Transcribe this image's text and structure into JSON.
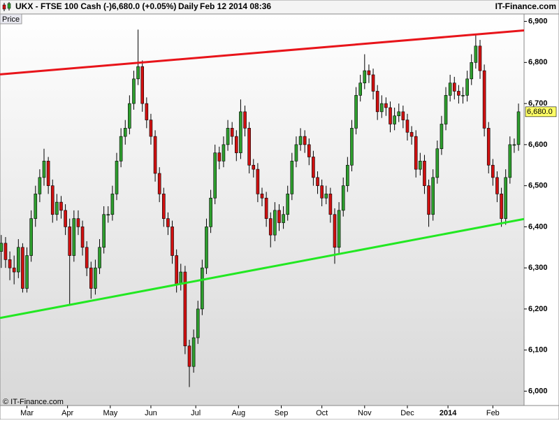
{
  "chart_data": {
    "type": "candlestick",
    "title": "UKX - FTSE 100 Cash (-)",
    "price_text": "6,680.0 (+0.05%)",
    "period": "Daily",
    "timestamp": "Feb 12 2014 08:36",
    "brand": "IT-Finance.com",
    "panel_label": "Price",
    "copyright": "© IT-Finance.com",
    "colors": {
      "up": "#2e9e2e",
      "down": "#d01010"
    },
    "xlim": [
      -0.3,
      122.3
    ],
    "xticks": [
      {
        "value": 6,
        "label": "Mar"
      },
      {
        "value": 15.5,
        "label": "Apr"
      },
      {
        "value": 25.5,
        "label": "May"
      },
      {
        "value": 35,
        "label": "Jun"
      },
      {
        "value": 45.5,
        "label": "Jul"
      },
      {
        "value": 55.5,
        "label": "Aug"
      },
      {
        "value": 65.5,
        "label": "Sep"
      },
      {
        "value": 75,
        "label": "Oct"
      },
      {
        "value": 85,
        "label": "Nov"
      },
      {
        "value": 95,
        "label": "Dec"
      },
      {
        "value": 104.5,
        "label": "2014"
      },
      {
        "value": 115,
        "label": "Feb"
      }
    ],
    "ylim": [
      5965,
      6918
    ],
    "yticks": [
      {
        "value": 6000,
        "label": "6,000"
      },
      {
        "value": 6100,
        "label": "6,100"
      },
      {
        "value": 6200,
        "label": "6,200"
      },
      {
        "value": 6300,
        "label": "6,300"
      },
      {
        "value": 6400,
        "label": "6,400"
      },
      {
        "value": 6500,
        "label": "6,500"
      },
      {
        "value": 6600,
        "label": "6,600"
      },
      {
        "value": 6700,
        "label": "6,700"
      },
      {
        "value": 6800,
        "label": "6,800"
      },
      {
        "value": 6900,
        "label": "6,900"
      }
    ],
    "last_price": {
      "value": 6680,
      "label": "6,680.0"
    },
    "trendlines": [
      {
        "color": "#e8141a",
        "values": [
          6771,
          6878
        ]
      },
      {
        "color": "#22e822",
        "values": [
          6178,
          6419
        ]
      }
    ],
    "ohlc": [
      [
        6340,
        6380,
        6300,
        6360
      ],
      [
        6360,
        6375,
        6300,
        6320
      ],
      [
        6320,
        6340,
        6270,
        6300
      ],
      [
        6300,
        6330,
        6260,
        6290
      ],
      [
        6290,
        6370,
        6275,
        6350
      ],
      [
        6350,
        6360,
        6240,
        6250
      ],
      [
        6250,
        6350,
        6240,
        6330
      ],
      [
        6330,
        6440,
        6315,
        6420
      ],
      [
        6420,
        6500,
        6400,
        6480
      ],
      [
        6480,
        6540,
        6460,
        6520
      ],
      [
        6520,
        6590,
        6500,
        6560
      ],
      [
        6560,
        6570,
        6480,
        6500
      ],
      [
        6500,
        6515,
        6410,
        6430
      ],
      [
        6430,
        6480,
        6415,
        6460
      ],
      [
        6460,
        6475,
        6420,
        6440
      ],
      [
        6440,
        6455,
        6380,
        6400
      ],
      [
        6400,
        6420,
        6210,
        6330
      ],
      [
        6330,
        6440,
        6315,
        6420
      ],
      [
        6420,
        6440,
        6380,
        6400
      ],
      [
        6400,
        6415,
        6330,
        6350
      ],
      [
        6350,
        6365,
        6280,
        6300
      ],
      [
        6300,
        6315,
        6225,
        6250
      ],
      [
        6250,
        6320,
        6235,
        6300
      ],
      [
        6300,
        6370,
        6285,
        6350
      ],
      [
        6350,
        6450,
        6335,
        6430
      ],
      [
        6430,
        6450,
        6410,
        6430
      ],
      [
        6430,
        6500,
        6415,
        6480
      ],
      [
        6480,
        6580,
        6465,
        6560
      ],
      [
        6560,
        6640,
        6545,
        6620
      ],
      [
        6620,
        6660,
        6600,
        6640
      ],
      [
        6640,
        6720,
        6625,
        6700
      ],
      [
        6700,
        6780,
        6685,
        6760
      ],
      [
        6760,
        6880,
        6745,
        6790
      ],
      [
        6790,
        6805,
        6680,
        6700
      ],
      [
        6700,
        6715,
        6640,
        6660
      ],
      [
        6660,
        6675,
        6600,
        6620
      ],
      [
        6620,
        6635,
        6510,
        6530
      ],
      [
        6530,
        6545,
        6460,
        6480
      ],
      [
        6480,
        6495,
        6400,
        6420
      ],
      [
        6420,
        6435,
        6380,
        6400
      ],
      [
        6400,
        6415,
        6310,
        6330
      ],
      [
        6330,
        6345,
        6240,
        6260
      ],
      [
        6260,
        6310,
        6245,
        6290
      ],
      [
        6290,
        6305,
        6090,
        6110
      ],
      [
        6110,
        6125,
        6010,
        6060
      ],
      [
        6060,
        6150,
        6045,
        6130
      ],
      [
        6130,
        6220,
        6115,
        6200
      ],
      [
        6200,
        6320,
        6185,
        6300
      ],
      [
        6300,
        6420,
        6285,
        6400
      ],
      [
        6400,
        6490,
        6385,
        6470
      ],
      [
        6470,
        6600,
        6455,
        6580
      ],
      [
        6580,
        6595,
        6540,
        6560
      ],
      [
        6560,
        6620,
        6545,
        6600
      ],
      [
        6600,
        6660,
        6585,
        6640
      ],
      [
        6640,
        6655,
        6600,
        6620
      ],
      [
        6620,
        6635,
        6560,
        6580
      ],
      [
        6580,
        6710,
        6565,
        6680
      ],
      [
        6680,
        6695,
        6620,
        6640
      ],
      [
        6640,
        6655,
        6530,
        6550
      ],
      [
        6550,
        6565,
        6520,
        6540
      ],
      [
        6540,
        6555,
        6460,
        6480
      ],
      [
        6480,
        6495,
        6450,
        6470
      ],
      [
        6470,
        6485,
        6400,
        6420
      ],
      [
        6420,
        6435,
        6350,
        6380
      ],
      [
        6380,
        6460,
        6365,
        6440
      ],
      [
        6440,
        6455,
        6390,
        6410
      ],
      [
        6410,
        6450,
        6395,
        6430
      ],
      [
        6430,
        6500,
        6415,
        6480
      ],
      [
        6480,
        6580,
        6465,
        6560
      ],
      [
        6560,
        6620,
        6545,
        6600
      ],
      [
        6600,
        6640,
        6585,
        6620
      ],
      [
        6620,
        6635,
        6580,
        6600
      ],
      [
        6600,
        6615,
        6550,
        6570
      ],
      [
        6570,
        6585,
        6500,
        6520
      ],
      [
        6520,
        6535,
        6480,
        6500
      ],
      [
        6500,
        6515,
        6450,
        6470
      ],
      [
        6470,
        6500,
        6455,
        6480
      ],
      [
        6480,
        6495,
        6410,
        6430
      ],
      [
        6430,
        6445,
        6310,
        6350
      ],
      [
        6350,
        6460,
        6335,
        6440
      ],
      [
        6440,
        6520,
        6425,
        6500
      ],
      [
        6500,
        6570,
        6485,
        6550
      ],
      [
        6550,
        6660,
        6535,
        6640
      ],
      [
        6640,
        6740,
        6625,
        6720
      ],
      [
        6720,
        6770,
        6705,
        6750
      ],
      [
        6750,
        6820,
        6735,
        6780
      ],
      [
        6780,
        6795,
        6750,
        6770
      ],
      [
        6770,
        6785,
        6710,
        6730
      ],
      [
        6730,
        6745,
        6660,
        6680
      ],
      [
        6680,
        6720,
        6665,
        6700
      ],
      [
        6700,
        6715,
        6670,
        6690
      ],
      [
        6690,
        6705,
        6630,
        6650
      ],
      [
        6650,
        6690,
        6635,
        6670
      ],
      [
        6670,
        6700,
        6655,
        6680
      ],
      [
        6680,
        6695,
        6640,
        6660
      ],
      [
        6660,
        6675,
        6610,
        6630
      ],
      [
        6630,
        6645,
        6600,
        6620
      ],
      [
        6620,
        6635,
        6520,
        6540
      ],
      [
        6540,
        6580,
        6525,
        6560
      ],
      [
        6560,
        6575,
        6480,
        6500
      ],
      [
        6500,
        6515,
        6400,
        6430
      ],
      [
        6430,
        6540,
        6415,
        6520
      ],
      [
        6520,
        6610,
        6505,
        6590
      ],
      [
        6590,
        6670,
        6575,
        6650
      ],
      [
        6650,
        6740,
        6635,
        6720
      ],
      [
        6720,
        6770,
        6705,
        6750
      ],
      [
        6750,
        6765,
        6710,
        6730
      ],
      [
        6730,
        6745,
        6700,
        6720
      ],
      [
        6720,
        6740,
        6700,
        6720
      ],
      [
        6720,
        6780,
        6705,
        6760
      ],
      [
        6760,
        6820,
        6745,
        6800
      ],
      [
        6800,
        6870,
        6785,
        6840
      ],
      [
        6840,
        6855,
        6760,
        6780
      ],
      [
        6780,
        6795,
        6620,
        6640
      ],
      [
        6640,
        6655,
        6530,
        6550
      ],
      [
        6550,
        6565,
        6500,
        6520
      ],
      [
        6520,
        6535,
        6460,
        6480
      ],
      [
        6480,
        6495,
        6400,
        6420
      ],
      [
        6420,
        6540,
        6405,
        6520
      ],
      [
        6520,
        6620,
        6505,
        6600
      ],
      [
        6600,
        6615,
        6580,
        6600
      ],
      [
        6600,
        6700,
        6585,
        6680
      ]
    ]
  }
}
